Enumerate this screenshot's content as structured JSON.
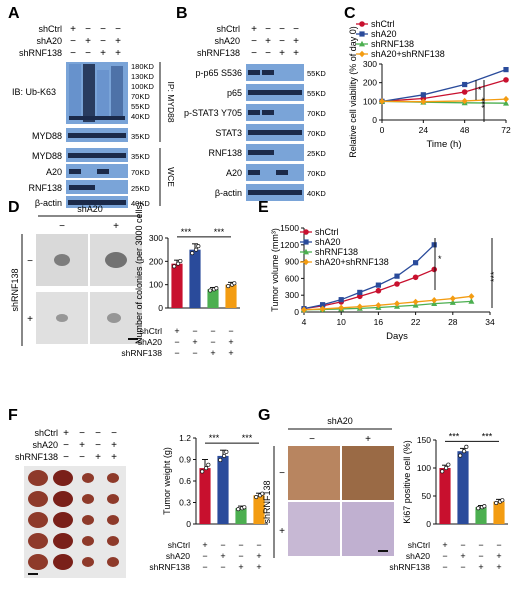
{
  "treatments": {
    "shctrl": "shCtrl",
    "sha20": "shA20",
    "shrnf138": "shRNF138"
  },
  "panel_letters": [
    "A",
    "B",
    "C",
    "D",
    "E",
    "F",
    "G"
  ],
  "colors": {
    "shctrl": "#c8102e",
    "sha20": "#2a4b9b",
    "shrnf138": "#4caf50",
    "combo": "#f39c12",
    "blot_bg": "#7aa4d8",
    "band": "#1b2a4a"
  },
  "panelA": {
    "header_rows": [
      {
        "label": "shCtrl",
        "marks": [
          "+",
          "−",
          "−",
          "−"
        ]
      },
      {
        "label": "shA20",
        "marks": [
          "−",
          "+",
          "−",
          "+"
        ]
      },
      {
        "label": "shRNF138",
        "marks": [
          "−",
          "−",
          "+",
          "+"
        ]
      }
    ],
    "ip_blot_label": "IB: Ub-K63",
    "ip_group_label": "IP: MYD88",
    "wce_group_label": "WCE",
    "rows": [
      "MYD88",
      "MYD88",
      "A20",
      "RNF138",
      "β-actin"
    ],
    "mw_ub": [
      "180KD",
      "130KD",
      "100KD",
      "70KD",
      "55KD",
      "40KD"
    ],
    "mw_rows": [
      "35KD",
      "35KD",
      "70KD",
      "25KD",
      "40KD"
    ]
  },
  "panelB": {
    "header_rows": [
      {
        "label": "shCtrl",
        "marks": [
          "+",
          "−",
          "−",
          "−"
        ]
      },
      {
        "label": "shA20",
        "marks": [
          "−",
          "+",
          "−",
          "+"
        ]
      },
      {
        "label": "shRNF138",
        "marks": [
          "−",
          "−",
          "+",
          "+"
        ]
      }
    ],
    "rows": [
      "p-p65 S536",
      "p65",
      "p-STAT3 Y705",
      "STAT3",
      "RNF138",
      "A20",
      "β-actin"
    ],
    "mw": [
      "55KD",
      "55KD",
      "70KD",
      "70KD",
      "25KD",
      "70KD",
      "40KD"
    ]
  },
  "panelD": {
    "col_title": "shA20",
    "col_marks": [
      "−",
      "+"
    ],
    "row_title": "shRNF138",
    "row_marks": [
      "−",
      "+"
    ]
  },
  "panelF": {
    "header_rows": [
      {
        "label": "shCtrl",
        "marks": [
          "+",
          "−",
          "−",
          "−"
        ]
      },
      {
        "label": "shA20",
        "marks": [
          "−",
          "+",
          "−",
          "+"
        ]
      },
      {
        "label": "shRNF138",
        "marks": [
          "−",
          "−",
          "+",
          "+"
        ]
      }
    ]
  },
  "panelG": {
    "col_title": "shA20",
    "col_marks": [
      "−",
      "+"
    ],
    "row_title": "shRNF138",
    "row_marks": [
      "−",
      "+"
    ]
  },
  "bar_treatment_table": [
    {
      "label": "shCtrl",
      "marks": [
        "+",
        "−",
        "−",
        "−"
      ]
    },
    {
      "label": "shA20",
      "marks": [
        "−",
        "+",
        "−",
        "+"
      ]
    },
    {
      "label": "shRNF138",
      "marks": [
        "−",
        "−",
        "+",
        "+"
      ]
    }
  ],
  "chart_data": [
    {
      "id": "C",
      "type": "line",
      "legend": [
        "shCtrl",
        "shA20",
        "shRNF138",
        "shA20+shRNF138"
      ],
      "xlabel": "Time (h)",
      "ylabel": "Relative cell viability (% of day 0)",
      "x": [
        0,
        24,
        48,
        72
      ],
      "xlim": [
        0,
        72
      ],
      "ylim": [
        0,
        300
      ],
      "yticks": [
        0,
        100,
        200,
        300
      ],
      "series": [
        {
          "name": "shCtrl",
          "values": [
            100,
            115,
            150,
            215
          ]
        },
        {
          "name": "shA20",
          "values": [
            100,
            135,
            190,
            270
          ]
        },
        {
          "name": "shRNF138",
          "values": [
            100,
            95,
            92,
            90
          ]
        },
        {
          "name": "shA20+shRNF138",
          "values": [
            100,
            98,
            102,
            112
          ]
        }
      ],
      "annotations": [
        "*",
        "***"
      ]
    },
    {
      "id": "D",
      "type": "bar",
      "ylabel": "Number of colonies (per 3000 cells)",
      "categories": [
        "1",
        "2",
        "3",
        "4"
      ],
      "values": [
        190,
        250,
        80,
        100
      ],
      "errors": [
        15,
        25,
        8,
        10
      ],
      "ylim": [
        0,
        300
      ],
      "yticks": [
        0,
        100,
        200,
        300
      ],
      "annotations": [
        "***",
        "***"
      ]
    },
    {
      "id": "E",
      "type": "line",
      "legend": [
        "shCtrl",
        "shA20",
        "shRNF138",
        "shA20+shRNF138"
      ],
      "xlabel": "Days",
      "ylabel": "Tumor volume (mm³)",
      "x": [
        4,
        7,
        10,
        13,
        16,
        19,
        22,
        25,
        28,
        31
      ],
      "xticks": [
        4,
        10,
        16,
        22,
        28,
        34
      ],
      "xlim": [
        4,
        34
      ],
      "ylim": [
        0,
        1500
      ],
      "yticks": [
        0,
        300,
        600,
        900,
        1200,
        1500
      ],
      "series": [
        {
          "name": "shCtrl",
          "x": [
            4,
            7,
            10,
            13,
            16,
            19,
            22,
            25
          ],
          "values": [
            60,
            110,
            180,
            280,
            380,
            500,
            620,
            760
          ]
        },
        {
          "name": "shA20",
          "x": [
            4,
            7,
            10,
            13,
            16,
            19,
            22,
            25
          ],
          "values": [
            60,
            130,
            220,
            350,
            480,
            640,
            880,
            1200
          ]
        },
        {
          "name": "shRNF138",
          "x": [
            4,
            7,
            10,
            13,
            16,
            19,
            22,
            25,
            28,
            31
          ],
          "values": [
            40,
            45,
            55,
            65,
            80,
            100,
            120,
            150,
            170,
            190
          ]
        },
        {
          "name": "shA20+shRNF138",
          "x": [
            4,
            7,
            10,
            13,
            16,
            19,
            22,
            25,
            28,
            31
          ],
          "values": [
            40,
            55,
            75,
            95,
            120,
            150,
            180,
            210,
            240,
            280
          ]
        }
      ],
      "annotations": [
        "*",
        "***"
      ]
    },
    {
      "id": "F",
      "type": "bar",
      "ylabel": "Tumor weight (g)",
      "categories": [
        "1",
        "2",
        "3",
        "4"
      ],
      "values": [
        0.78,
        0.95,
        0.22,
        0.4
      ],
      "errors": [
        0.12,
        0.08,
        0.03,
        0.03
      ],
      "ylim": [
        0,
        1.2
      ],
      "yticks": [
        0,
        0.3,
        0.6,
        0.9,
        1.2
      ],
      "annotations": [
        "***",
        "***"
      ]
    },
    {
      "id": "G",
      "type": "bar",
      "ylabel": "Ki67 positive cell (%)",
      "categories": [
        "1",
        "2",
        "3",
        "4"
      ],
      "values": [
        100,
        130,
        30,
        40
      ],
      "errors": [
        5,
        5,
        3,
        4
      ],
      "ylim": [
        0,
        150
      ],
      "yticks": [
        0,
        50,
        100,
        150
      ],
      "annotations": [
        "***",
        "***"
      ]
    }
  ]
}
